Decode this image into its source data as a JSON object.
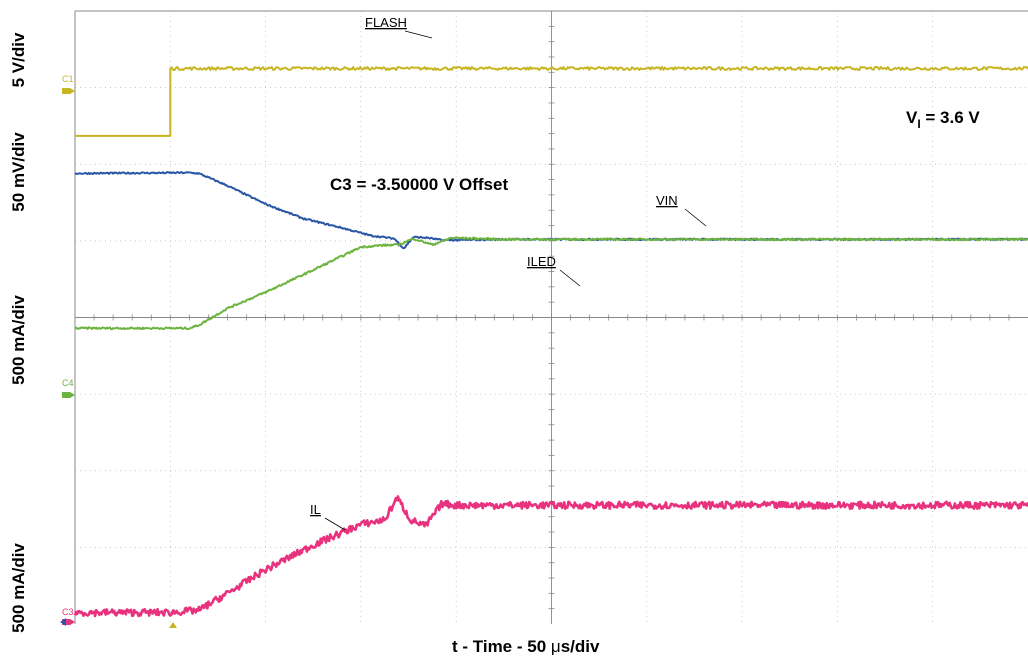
{
  "chart_data": {
    "type": "line",
    "xlabel_prefix": "t - Time - 50 ",
    "xlabel_mu": "μ",
    "xlabel_suffix": "s/div",
    "x_divisions": 10,
    "y_divisions": 8,
    "annotations": {
      "condition_main": "V",
      "condition_sub": "I",
      "condition_rest": " = 3.6 V",
      "offset_note": "C3 = -3.50000 V Offset"
    },
    "channel_labels": [
      "C1",
      "C4",
      "C3"
    ],
    "y_scale_labels": [
      "5 V/div",
      "50 mV/div",
      "500 mA/div",
      "500 mA/div"
    ],
    "series": [
      {
        "name": "FLASH",
        "color": "#c8b523",
        "x": [
          0,
          1.0,
          1.0,
          10
        ],
        "y": [
          6.37,
          6.37,
          7.25,
          7.25
        ],
        "noise": 0.02
      },
      {
        "name": "VIN",
        "color": "#2a56a6",
        "x": [
          0,
          1.2,
          1.3,
          1.6,
          2.0,
          2.4,
          2.8,
          3.1,
          3.35,
          3.45,
          3.55,
          3.7,
          3.85,
          4.0,
          4.5,
          5.0,
          6.0,
          7.0,
          8.0,
          9.0,
          10.0
        ],
        "y": [
          5.88,
          5.89,
          5.88,
          5.72,
          5.48,
          5.29,
          5.17,
          5.07,
          5.03,
          4.9,
          5.05,
          5.04,
          5.01,
          5.01,
          5.02,
          5.02,
          5.02,
          5.02,
          5.02,
          5.02,
          5.02
        ],
        "noise": 0.01
      },
      {
        "name": "ILED",
        "color": "#6cb43f",
        "x": [
          0,
          1.2,
          1.3,
          1.6,
          2.0,
          2.5,
          3.0,
          3.2,
          3.4,
          3.55,
          3.75,
          3.95,
          4.5,
          5.0,
          6.0,
          7.0,
          8.0,
          9.0,
          10.0
        ],
        "y": [
          3.86,
          3.86,
          3.9,
          4.12,
          4.33,
          4.62,
          4.92,
          4.94,
          4.95,
          5.03,
          4.95,
          5.04,
          5.02,
          5.02,
          5.02,
          5.02,
          5.02,
          5.02,
          5.02
        ],
        "noise": 0.012
      },
      {
        "name": "IL",
        "color": "#e8327e",
        "x": [
          0,
          1.0,
          1.3,
          1.6,
          2.0,
          2.5,
          3.0,
          3.25,
          3.38,
          3.52,
          3.68,
          3.85,
          4.0,
          5.0,
          6.0,
          7.0,
          8.0,
          9.0,
          10.0
        ],
        "y": [
          0.15,
          0.15,
          0.18,
          0.4,
          0.71,
          1.03,
          1.3,
          1.36,
          1.65,
          1.36,
          1.28,
          1.57,
          1.55,
          1.55,
          1.55,
          1.55,
          1.55,
          1.55,
          1.55
        ],
        "noise": 0.045
      }
    ]
  }
}
